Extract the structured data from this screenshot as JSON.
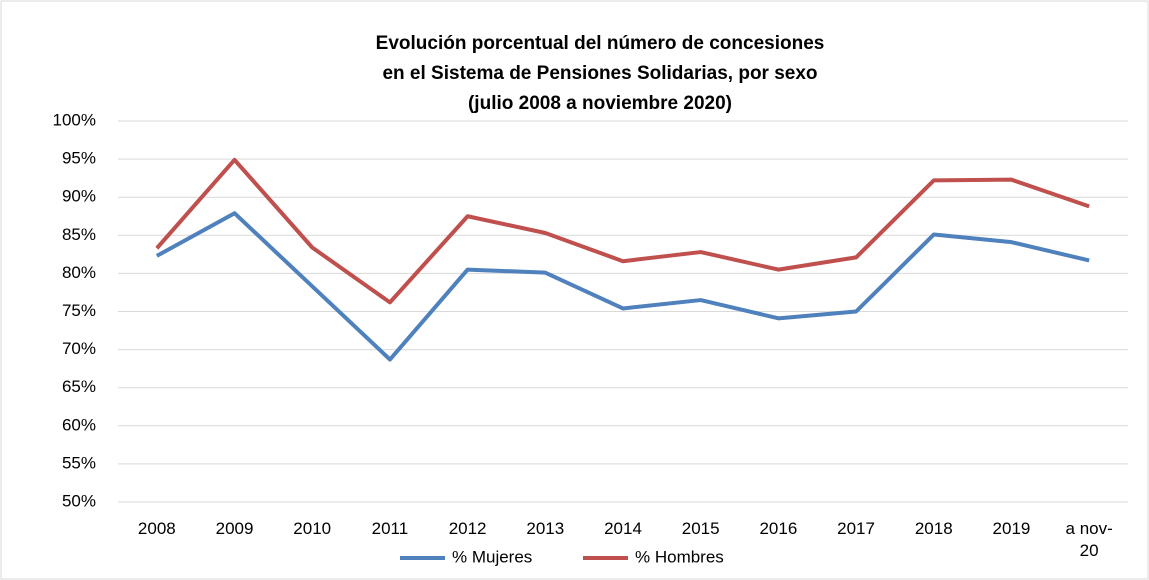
{
  "chart_data": {
    "type": "line",
    "title": [
      "Evolución porcentual del número de concesiones",
      "en el Sistema de Pensiones Solidarias, por sexo",
      "(julio 2008 a noviembre 2020)"
    ],
    "categories": [
      "2008",
      "2009",
      "2010",
      "2011",
      "2012",
      "2013",
      "2014",
      "2015",
      "2016",
      "2017",
      "2018",
      "2019",
      "a nov-20"
    ],
    "series": [
      {
        "name": "% Mujeres",
        "color": "#4f81bd",
        "values": [
          82.3,
          87.9,
          78.3,
          68.7,
          80.5,
          80.1,
          75.4,
          76.5,
          74.1,
          75.0,
          85.1,
          84.1,
          81.7
        ]
      },
      {
        "name": "% Hombres",
        "color": "#c0504d",
        "values": [
          83.3,
          94.9,
          83.4,
          76.2,
          87.5,
          85.3,
          81.6,
          82.8,
          80.5,
          82.1,
          92.2,
          92.3,
          88.8
        ]
      }
    ],
    "ylim": [
      50,
      100
    ],
    "yticks": [
      {
        "value": 50,
        "label": "50%"
      },
      {
        "value": 55,
        "label": "55%"
      },
      {
        "value": 60,
        "label": "60%"
      },
      {
        "value": 65,
        "label": "65%"
      },
      {
        "value": 70,
        "label": "70%"
      },
      {
        "value": 75,
        "label": "75%"
      },
      {
        "value": 80,
        "label": "80%"
      },
      {
        "value": 85,
        "label": "85%"
      },
      {
        "value": 90,
        "label": "90%"
      },
      {
        "value": 95,
        "label": "95%"
      },
      {
        "value": 100,
        "label": "100%"
      }
    ],
    "grid": true,
    "legend": "bottom"
  }
}
